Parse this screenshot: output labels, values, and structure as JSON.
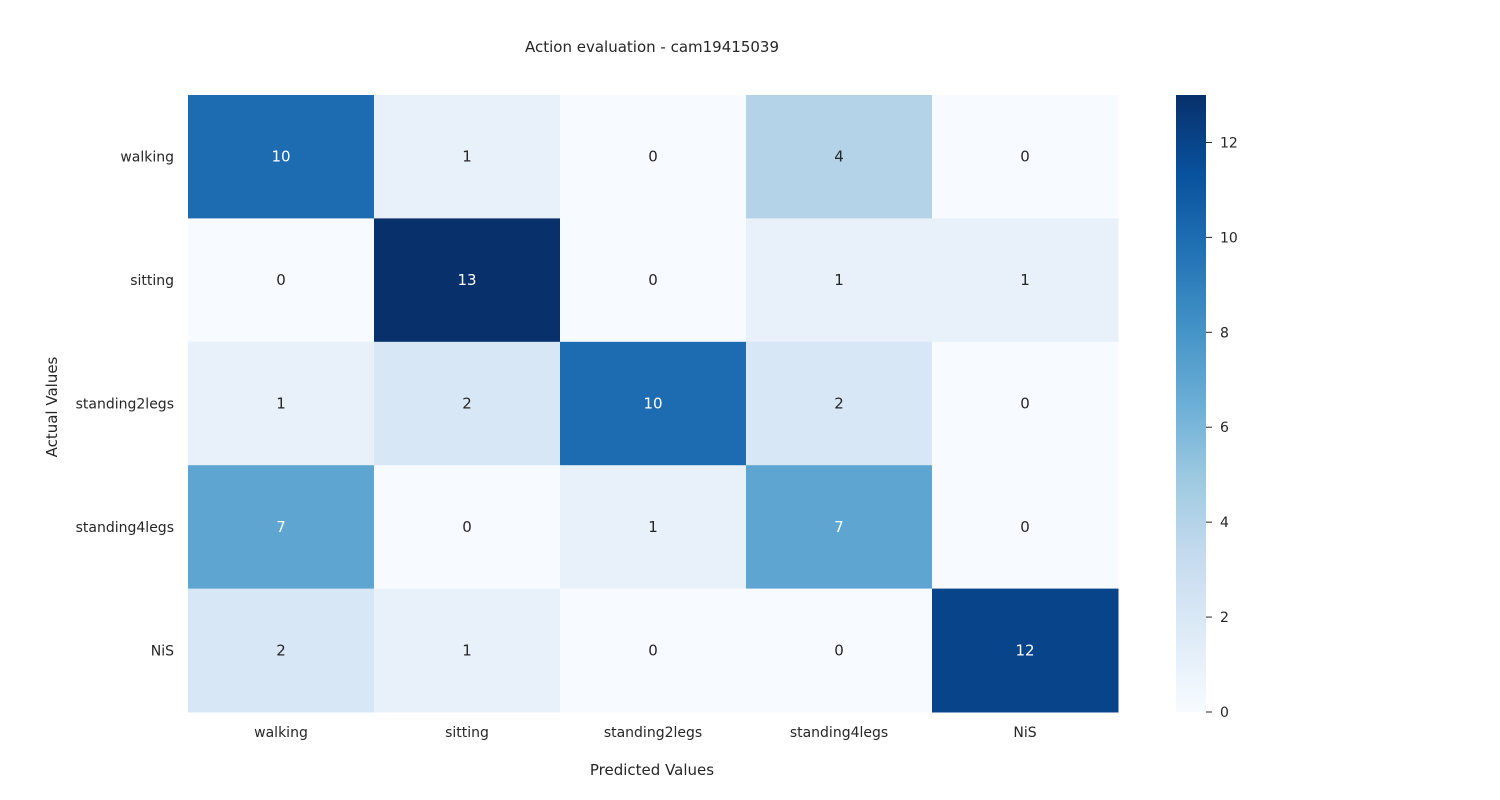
{
  "chart_data": {
    "type": "heatmap",
    "title": "Action evaluation - cam19415039",
    "xlabel": "Predicted Values",
    "ylabel": "Actual Values",
    "x_categories": [
      "walking",
      "sitting",
      "standing2legs",
      "standing4legs",
      "NiS"
    ],
    "y_categories": [
      "walking",
      "sitting",
      "standing2legs",
      "standing4legs",
      "NiS"
    ],
    "values": [
      [
        10,
        1,
        0,
        4,
        0
      ],
      [
        0,
        13,
        0,
        1,
        1
      ],
      [
        1,
        2,
        10,
        2,
        0
      ],
      [
        7,
        0,
        1,
        7,
        0
      ],
      [
        2,
        1,
        0,
        0,
        12
      ]
    ],
    "colormap": "Blues",
    "colormap_low": "#f7fbff",
    "colormap_high": "#08306b",
    "annotation_dark": "#262626",
    "annotation_light": "#ffffff",
    "colorbar": {
      "range": [
        0,
        13
      ],
      "ticks": [
        0,
        2,
        4,
        6,
        8,
        10,
        12
      ]
    },
    "grid": false
  }
}
